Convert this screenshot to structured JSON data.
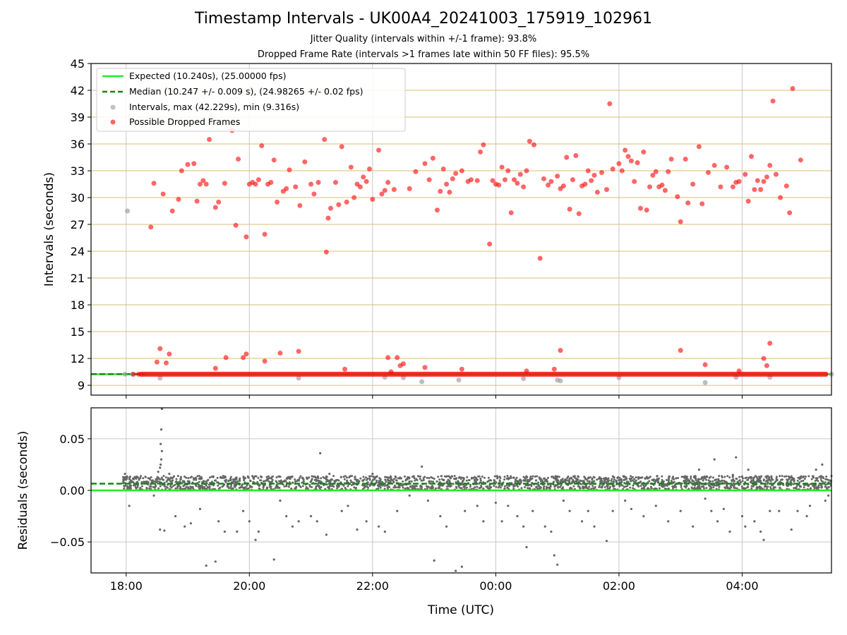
{
  "titles": {
    "main": "Timestamp Intervals - UK00A4_20241003_175919_102961",
    "sub1": "Jitter Quality (intervals within +/-1 frame): 93.8%",
    "sub2": "Dropped Frame Rate (intervals >1 frames late within 50 FF files): 95.5%"
  },
  "colors": {
    "expected": "#22ee22",
    "median": "#118811",
    "intervals": "#999999",
    "dropped": "#ff0000",
    "residuals": "#666666",
    "hgrid_top": "#d9bf73",
    "grid": "#c8c8c8"
  },
  "chart_data": [
    {
      "type": "scatter",
      "panel": "intervals",
      "ylabel": "Intervals (seconds)",
      "xlabel": "",
      "x_unit": "hours (UTC, 24 = 00:00 next day)",
      "xlim": [
        17.43,
        29.45
      ],
      "ylim": [
        7.9,
        45
      ],
      "yticks": [
        9,
        12,
        15,
        18,
        21,
        24,
        27,
        30,
        33,
        36,
        39,
        42,
        45
      ],
      "xticks": [
        18,
        20,
        22,
        24,
        26,
        28
      ],
      "xtick_labels": [
        "18:00",
        "20:00",
        "22:00",
        "00:00",
        "02:00",
        "04:00"
      ],
      "grid": "horizontal (tan) and vertical (grey)",
      "legend_position": "top-left",
      "legend": [
        "Expected (10.240s), (25.00000 fps)",
        "Median (10.247 +/- 0.009 s), (24.98265 +/- 0.02 fps)",
        "Intervals, max (42.229s), min (9.316s)",
        "Possible Dropped Frames"
      ],
      "expected": 10.24,
      "median": 10.247,
      "baseline_band": {
        "x_start": 18.2,
        "x_end": 29.4,
        "y": 10.24
      },
      "intervals_points": [
        [
          18.02,
          28.5
        ],
        [
          17.98,
          10.24
        ],
        [
          18.1,
          10.24
        ],
        [
          18.55,
          9.8
        ],
        [
          20.8,
          9.8
        ],
        [
          22.2,
          9.9
        ],
        [
          22.5,
          9.85
        ],
        [
          22.8,
          9.4
        ],
        [
          23.4,
          9.6
        ],
        [
          24.45,
          9.75
        ],
        [
          25.0,
          9.6
        ],
        [
          25.05,
          9.5
        ],
        [
          26.0,
          9.85
        ],
        [
          27.4,
          9.3
        ],
        [
          27.9,
          9.9
        ],
        [
          28.45,
          9.9
        ],
        [
          29.45,
          10.24
        ]
      ],
      "dropped_points": [
        [
          18.4,
          26.7
        ],
        [
          18.45,
          31.6
        ],
        [
          18.6,
          30.4
        ],
        [
          18.75,
          28.5
        ],
        [
          18.85,
          29.8
        ],
        [
          18.9,
          33.0
        ],
        [
          19.0,
          33.7
        ],
        [
          19.1,
          33.8
        ],
        [
          19.15,
          29.6
        ],
        [
          19.2,
          31.5
        ],
        [
          19.25,
          31.9
        ],
        [
          19.3,
          31.5
        ],
        [
          19.35,
          36.5
        ],
        [
          19.45,
          28.9
        ],
        [
          19.5,
          29.5
        ],
        [
          19.6,
          31.6
        ],
        [
          19.72,
          37.5
        ],
        [
          19.78,
          26.9
        ],
        [
          19.82,
          34.3
        ],
        [
          19.95,
          25.6
        ],
        [
          20.0,
          31.5
        ],
        [
          20.05,
          31.7
        ],
        [
          20.1,
          31.5
        ],
        [
          20.15,
          32.0
        ],
        [
          20.2,
          35.8
        ],
        [
          20.25,
          25.9
        ],
        [
          20.3,
          31.5
        ],
        [
          20.35,
          31.7
        ],
        [
          20.4,
          34.2
        ],
        [
          20.45,
          29.5
        ],
        [
          20.55,
          30.7
        ],
        [
          20.6,
          31.0
        ],
        [
          20.65,
          33.1
        ],
        [
          20.75,
          31.2
        ],
        [
          20.82,
          29.1
        ],
        [
          20.9,
          34.0
        ],
        [
          21.0,
          31.5
        ],
        [
          21.05,
          30.4
        ],
        [
          21.12,
          31.7
        ],
        [
          21.22,
          36.5
        ],
        [
          21.25,
          23.9
        ],
        [
          21.28,
          27.7
        ],
        [
          21.32,
          28.8
        ],
        [
          21.4,
          31.7
        ],
        [
          21.45,
          29.2
        ],
        [
          21.5,
          35.7
        ],
        [
          21.58,
          29.5
        ],
        [
          21.65,
          33.4
        ],
        [
          21.7,
          30.0
        ],
        [
          21.75,
          31.5
        ],
        [
          21.8,
          31.2
        ],
        [
          21.85,
          32.3
        ],
        [
          21.9,
          31.8
        ],
        [
          21.95,
          33.2
        ],
        [
          22.0,
          29.8
        ],
        [
          22.1,
          35.3
        ],
        [
          22.15,
          30.4
        ],
        [
          22.2,
          30.8
        ],
        [
          22.25,
          31.7
        ],
        [
          22.35,
          30.9
        ],
        [
          22.6,
          31.0
        ],
        [
          22.7,
          32.9
        ],
        [
          22.85,
          33.8
        ],
        [
          22.92,
          32.0
        ],
        [
          22.98,
          34.4
        ],
        [
          23.05,
          28.6
        ],
        [
          23.1,
          30.7
        ],
        [
          23.15,
          33.2
        ],
        [
          23.2,
          31.5
        ],
        [
          23.25,
          30.6
        ],
        [
          23.3,
          32.1
        ],
        [
          23.35,
          32.7
        ],
        [
          23.45,
          33.0
        ],
        [
          23.55,
          31.8
        ],
        [
          23.6,
          32.0
        ],
        [
          23.7,
          31.9
        ],
        [
          23.75,
          35.1
        ],
        [
          23.8,
          35.9
        ],
        [
          23.9,
          24.8
        ],
        [
          23.95,
          31.9
        ],
        [
          24.0,
          31.5
        ],
        [
          24.05,
          31.4
        ],
        [
          24.1,
          33.4
        ],
        [
          24.15,
          32.0
        ],
        [
          24.2,
          33.0
        ],
        [
          24.25,
          28.3
        ],
        [
          24.3,
          32.0
        ],
        [
          24.35,
          31.6
        ],
        [
          24.4,
          32.6
        ],
        [
          24.45,
          31.2
        ],
        [
          24.5,
          33.0
        ],
        [
          24.55,
          36.3
        ],
        [
          24.62,
          35.9
        ],
        [
          24.72,
          23.2
        ],
        [
          24.78,
          32.1
        ],
        [
          24.85,
          31.4
        ],
        [
          24.9,
          31.8
        ],
        [
          25.0,
          32.4
        ],
        [
          25.05,
          31.0
        ],
        [
          25.1,
          31.3
        ],
        [
          25.15,
          34.5
        ],
        [
          25.2,
          28.7
        ],
        [
          25.25,
          32.0
        ],
        [
          25.3,
          34.7
        ],
        [
          25.35,
          28.2
        ],
        [
          25.4,
          31.3
        ],
        [
          25.45,
          31.5
        ],
        [
          25.5,
          33.0
        ],
        [
          25.55,
          31.9
        ],
        [
          25.6,
          32.5
        ],
        [
          25.65,
          30.6
        ],
        [
          25.72,
          32.8
        ],
        [
          25.8,
          30.9
        ],
        [
          25.85,
          40.5
        ],
        [
          25.9,
          33.2
        ],
        [
          26.0,
          33.8
        ],
        [
          26.05,
          33.0
        ],
        [
          26.1,
          35.3
        ],
        [
          26.15,
          34.6
        ],
        [
          26.2,
          34.1
        ],
        [
          26.25,
          31.8
        ],
        [
          26.3,
          33.9
        ],
        [
          26.35,
          28.8
        ],
        [
          26.4,
          35.1
        ],
        [
          26.45,
          28.6
        ],
        [
          26.5,
          31.2
        ],
        [
          26.55,
          32.5
        ],
        [
          26.6,
          32.9
        ],
        [
          26.65,
          31.2
        ],
        [
          26.7,
          31.4
        ],
        [
          26.75,
          30.8
        ],
        [
          26.8,
          32.9
        ],
        [
          26.85,
          34.3
        ],
        [
          26.95,
          30.1
        ],
        [
          27.0,
          27.3
        ],
        [
          27.08,
          34.3
        ],
        [
          27.12,
          29.4
        ],
        [
          27.2,
          31.5
        ],
        [
          27.3,
          35.7
        ],
        [
          27.35,
          29.3
        ],
        [
          27.45,
          32.8
        ],
        [
          27.55,
          33.6
        ],
        [
          27.65,
          31.2
        ],
        [
          27.75,
          33.4
        ],
        [
          27.85,
          31.2
        ],
        [
          27.9,
          31.7
        ],
        [
          27.95,
          31.8
        ],
        [
          28.05,
          32.6
        ],
        [
          28.1,
          29.6
        ],
        [
          28.15,
          34.6
        ],
        [
          28.2,
          30.9
        ],
        [
          28.25,
          31.9
        ],
        [
          28.3,
          30.9
        ],
        [
          28.35,
          31.8
        ],
        [
          28.4,
          32.3
        ],
        [
          28.45,
          33.6
        ],
        [
          28.5,
          40.8
        ],
        [
          28.55,
          32.6
        ],
        [
          28.62,
          30.0
        ],
        [
          28.72,
          31.3
        ],
        [
          28.77,
          28.3
        ],
        [
          28.82,
          42.2
        ],
        [
          28.95,
          34.2
        ],
        [
          18.55,
          13.1
        ],
        [
          18.5,
          11.6
        ],
        [
          18.65,
          11.5
        ],
        [
          18.7,
          12.5
        ],
        [
          19.45,
          10.9
        ],
        [
          19.62,
          12.1
        ],
        [
          19.9,
          12.1
        ],
        [
          19.95,
          12.5
        ],
        [
          20.25,
          11.7
        ],
        [
          20.5,
          12.6
        ],
        [
          20.8,
          12.8
        ],
        [
          21.55,
          10.8
        ],
        [
          22.25,
          12.1
        ],
        [
          22.4,
          12.1
        ],
        [
          22.45,
          11.2
        ],
        [
          22.5,
          11.4
        ],
        [
          22.3,
          10.5
        ],
        [
          22.85,
          11.0
        ],
        [
          23.45,
          10.8
        ],
        [
          24.5,
          10.6
        ],
        [
          24.95,
          10.8
        ],
        [
          25.05,
          12.9
        ],
        [
          27.0,
          12.9
        ],
        [
          27.4,
          11.3
        ],
        [
          27.95,
          10.6
        ],
        [
          28.35,
          12.0
        ],
        [
          28.4,
          11.2
        ],
        [
          28.45,
          13.7
        ],
        [
          18.12,
          10.24
        ],
        [
          18.2,
          10.24
        ]
      ],
      "series": [
        {
          "name": "Expected (10.240s), (25.00000 fps)"
        },
        {
          "name": "Median (10.247 +/- 0.009 s), (24.98265 +/- 0.02 fps)"
        },
        {
          "name": "Intervals, max (42.229s), min (9.316s)"
        },
        {
          "name": "Possible Dropped Frames"
        }
      ]
    },
    {
      "type": "scatter",
      "panel": "residuals",
      "ylabel": "Residuals (seconds)",
      "xlabel": "Time (UTC)",
      "xlim": [
        17.43,
        29.45
      ],
      "ylim": [
        -0.08,
        0.08
      ],
      "yticks": [
        -0.05,
        0.0,
        0.05
      ],
      "ytick_labels": [
        "−0.05",
        "0.00",
        "0.05"
      ],
      "xticks": [
        18,
        20,
        22,
        24,
        26,
        28
      ],
      "xtick_labels": [
        "18:00",
        "20:00",
        "22:00",
        "00:00",
        "02:00",
        "04:00"
      ],
      "grid": "horizontal and vertical (grey)",
      "expected_residual": 0.0,
      "median_residual": 0.0065,
      "band": {
        "x_start": 17.95,
        "x_end": 29.45,
        "center": 0.007,
        "spread": 0.007
      },
      "points": [
        [
          17.98,
          0.016
        ],
        [
          18.05,
          -0.015
        ],
        [
          18.45,
          -0.005
        ],
        [
          18.52,
          0.018
        ],
        [
          18.55,
          0.022
        ],
        [
          18.56,
          0.025
        ],
        [
          18.57,
          0.03
        ],
        [
          18.58,
          0.038
        ],
        [
          18.56,
          0.045
        ],
        [
          18.57,
          0.059
        ],
        [
          18.58,
          0.079
        ],
        [
          18.55,
          -0.038
        ],
        [
          18.62,
          -0.039
        ],
        [
          18.7,
          0.016
        ],
        [
          18.8,
          -0.025
        ],
        [
          18.95,
          -0.035
        ],
        [
          19.05,
          -0.032
        ],
        [
          19.2,
          -0.018
        ],
        [
          19.3,
          -0.073
        ],
        [
          19.45,
          -0.069
        ],
        [
          19.5,
          -0.03
        ],
        [
          19.6,
          -0.04
        ],
        [
          19.8,
          -0.04
        ],
        [
          19.9,
          -0.02
        ],
        [
          20.0,
          -0.03
        ],
        [
          20.1,
          -0.048
        ],
        [
          20.15,
          -0.04
        ],
        [
          20.4,
          -0.067
        ],
        [
          20.5,
          -0.01
        ],
        [
          20.6,
          -0.025
        ],
        [
          20.7,
          -0.035
        ],
        [
          20.8,
          -0.03
        ],
        [
          21.0,
          -0.025
        ],
        [
          21.1,
          -0.03
        ],
        [
          21.15,
          0.036
        ],
        [
          21.25,
          -0.043
        ],
        [
          21.3,
          0.016
        ],
        [
          21.5,
          -0.02
        ],
        [
          21.6,
          -0.015
        ],
        [
          21.75,
          -0.038
        ],
        [
          21.9,
          -0.03
        ],
        [
          22.0,
          0.016
        ],
        [
          22.1,
          -0.035
        ],
        [
          22.2,
          -0.04
        ],
        [
          22.4,
          -0.02
        ],
        [
          22.6,
          -0.005
        ],
        [
          22.8,
          0.023
        ],
        [
          22.9,
          -0.01
        ],
        [
          23.0,
          -0.068
        ],
        [
          23.1,
          -0.025
        ],
        [
          23.2,
          -0.035
        ],
        [
          23.35,
          -0.078
        ],
        [
          23.45,
          -0.074
        ],
        [
          23.5,
          -0.02
        ],
        [
          23.7,
          -0.015
        ],
        [
          23.8,
          -0.03
        ],
        [
          24.0,
          -0.012
        ],
        [
          24.1,
          -0.03
        ],
        [
          24.2,
          -0.015
        ],
        [
          24.35,
          -0.025
        ],
        [
          24.45,
          -0.035
        ],
        [
          24.5,
          -0.055
        ],
        [
          24.6,
          -0.02
        ],
        [
          24.8,
          -0.035
        ],
        [
          24.9,
          -0.04
        ],
        [
          24.95,
          -0.063
        ],
        [
          25.0,
          -0.072
        ],
        [
          25.1,
          -0.01
        ],
        [
          25.2,
          -0.02
        ],
        [
          25.4,
          -0.03
        ],
        [
          25.5,
          -0.02
        ],
        [
          25.6,
          -0.035
        ],
        [
          25.8,
          -0.049
        ],
        [
          25.9,
          -0.02
        ],
        [
          26.1,
          -0.01
        ],
        [
          26.2,
          -0.018
        ],
        [
          26.4,
          -0.025
        ],
        [
          26.6,
          -0.015
        ],
        [
          26.8,
          -0.03
        ],
        [
          27.0,
          -0.02
        ],
        [
          27.2,
          -0.035
        ],
        [
          27.3,
          0.02
        ],
        [
          27.4,
          -0.008
        ],
        [
          27.5,
          -0.02
        ],
        [
          27.55,
          0.03
        ],
        [
          27.6,
          -0.03
        ],
        [
          27.7,
          -0.018
        ],
        [
          27.8,
          -0.04
        ],
        [
          27.85,
          0.015
        ],
        [
          27.9,
          0.032
        ],
        [
          28.0,
          -0.025
        ],
        [
          28.05,
          -0.035
        ],
        [
          28.1,
          0.02
        ],
        [
          28.2,
          -0.03
        ],
        [
          28.3,
          -0.04
        ],
        [
          28.35,
          -0.048
        ],
        [
          28.45,
          -0.02
        ],
        [
          28.6,
          -0.02
        ],
        [
          28.8,
          -0.038
        ],
        [
          28.9,
          -0.02
        ],
        [
          28.95,
          0.012
        ],
        [
          29.05,
          -0.025
        ],
        [
          29.1,
          -0.015
        ],
        [
          29.2,
          0.02
        ],
        [
          29.3,
          0.025
        ],
        [
          29.35,
          -0.01
        ],
        [
          29.4,
          -0.005
        ]
      ]
    }
  ]
}
